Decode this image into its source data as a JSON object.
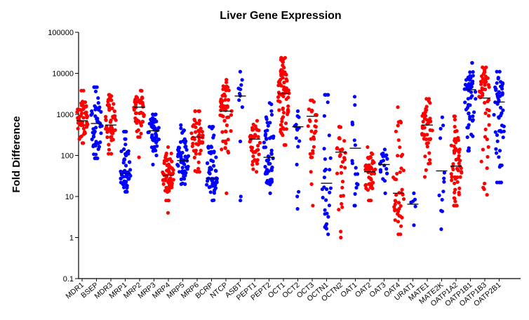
{
  "chart_data": {
    "type": "scatter",
    "title": "Liver Gene Expression",
    "xlabel": "",
    "ylabel": "Fold Difference",
    "yscale": "log",
    "ylim": [
      0.1,
      100000
    ],
    "yticks": [
      "0.1",
      "1",
      "10",
      "100",
      "1000",
      "10000",
      "100000"
    ],
    "grid": false,
    "legend": "none",
    "colors": {
      "red": "#ff0000",
      "blue": "#0000ff",
      "median": "#000000"
    },
    "categories": [
      {
        "name": "MDR1",
        "color": "red",
        "median": 700,
        "lo": 200,
        "hi": 3800,
        "n": 52,
        "extra": []
      },
      {
        "name": "BSEP",
        "color": "blue",
        "median": 600,
        "lo": 85,
        "hi": 4600,
        "n": 52,
        "extra": []
      },
      {
        "name": "MDR3",
        "color": "red",
        "median": 550,
        "lo": 110,
        "hi": 3000,
        "n": 55,
        "extra": []
      },
      {
        "name": "MRP1",
        "color": "blue",
        "median": 36,
        "lo": 13,
        "hi": 380,
        "n": 55,
        "extra": []
      },
      {
        "name": "MRP2",
        "color": "red",
        "median": 1500,
        "lo": 280,
        "hi": 3800,
        "n": 45,
        "extra": [
          90
        ]
      },
      {
        "name": "MRP3",
        "color": "blue",
        "median": 400,
        "lo": 100,
        "hi": 1000,
        "n": 50,
        "extra": [
          60
        ]
      },
      {
        "name": "MRP4",
        "color": "red",
        "median": 33,
        "lo": 8,
        "hi": 160,
        "n": 58,
        "extra": [
          4
        ]
      },
      {
        "name": "MRP5",
        "color": "blue",
        "median": 75,
        "lo": 20,
        "hi": 550,
        "n": 58,
        "extra": []
      },
      {
        "name": "MRP6",
        "color": "red",
        "median": 280,
        "lo": 40,
        "hi": 1200,
        "n": 50,
        "extra": []
      },
      {
        "name": "BCRP",
        "color": "blue",
        "median": 28,
        "lo": 8,
        "hi": 500,
        "n": 58,
        "extra": []
      },
      {
        "name": "NTCP",
        "color": "red",
        "median": 1200,
        "lo": 12,
        "hi": 7000,
        "n": 58,
        "extra": []
      },
      {
        "name": "ASBT",
        "color": "blue",
        "median": 2800,
        "lo": 220,
        "hi": 11000,
        "n": 10,
        "extra": [
          8,
          10
        ]
      },
      {
        "name": "PEPT1",
        "color": "red",
        "median": 250,
        "lo": 40,
        "hi": 700,
        "n": 42,
        "extra": []
      },
      {
        "name": "PEPT2",
        "color": "blue",
        "median": 90,
        "lo": 12,
        "hi": 1900,
        "n": 55,
        "extra": []
      },
      {
        "name": "OCT1",
        "color": "red",
        "median": 3200,
        "lo": 180,
        "hi": 24000,
        "n": 75,
        "extra": []
      },
      {
        "name": "OCT2",
        "color": "blue",
        "median": 500,
        "lo": 60,
        "hi": 1200,
        "n": 13,
        "extra": [
          5,
          10,
          13
        ]
      },
      {
        "name": "OCT3",
        "color": "red",
        "median": 900,
        "lo": 90,
        "hi": 2200,
        "n": 28,
        "extra": [
          6,
          20,
          40
        ]
      },
      {
        "name": "OCTN1",
        "color": "blue",
        "median": 21,
        "lo": 1.2,
        "hi": 3000,
        "n": 32,
        "extra": []
      },
      {
        "name": "OCTN2",
        "color": "red",
        "median": 120,
        "lo": 1,
        "hi": 500,
        "n": 32,
        "extra": []
      },
      {
        "name": "OAT1",
        "color": "blue",
        "median": 150,
        "lo": 6,
        "hi": 2700,
        "n": 18,
        "extra": []
      },
      {
        "name": "OAT2",
        "color": "red",
        "median": 40,
        "lo": 8,
        "hi": 160,
        "n": 45,
        "extra": []
      },
      {
        "name": "OAT3",
        "color": "blue",
        "median": 60,
        "lo": 12,
        "hi": 140,
        "n": 20,
        "extra": []
      },
      {
        "name": "OAT4",
        "color": "red",
        "median": 12,
        "lo": 1.2,
        "hi": 1500,
        "n": 45,
        "extra": []
      },
      {
        "name": "URAT1",
        "color": "blue",
        "median": 6.5,
        "lo": 2,
        "hi": 12,
        "n": 6,
        "extra": []
      },
      {
        "name": "MATE1",
        "color": "red",
        "median": 550,
        "lo": 30,
        "hi": 2400,
        "n": 45,
        "extra": []
      },
      {
        "name": "MATE2K",
        "color": "blue",
        "median": 42,
        "lo": 1.6,
        "hi": 850,
        "n": 13,
        "extra": []
      },
      {
        "name": "OATP1A2",
        "color": "red",
        "median": 55,
        "lo": 6,
        "hi": 900,
        "n": 58,
        "extra": []
      },
      {
        "name": "OATP1B1",
        "color": "blue",
        "median": 4000,
        "lo": 130,
        "hi": 18000,
        "n": 55,
        "extra": []
      },
      {
        "name": "OATP1B3",
        "color": "red",
        "median": 2500,
        "lo": 11,
        "hi": 14000,
        "n": 52,
        "extra": []
      },
      {
        "name": "OATP2B1",
        "color": "blue",
        "median": 2000,
        "lo": 22,
        "hi": 11000,
        "n": 55,
        "extra": []
      }
    ]
  }
}
